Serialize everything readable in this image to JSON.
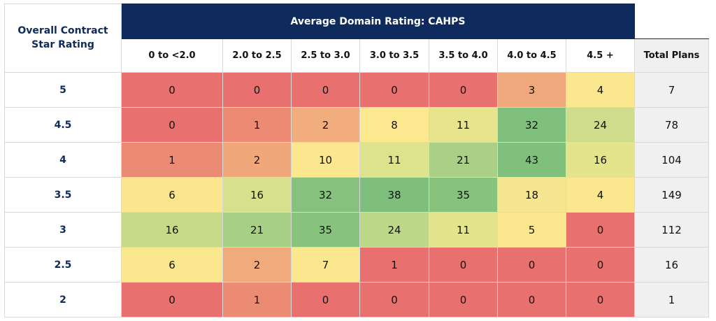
{
  "table": {
    "corner_header": "Overall Contract Star Rating",
    "group_header": "Average Domain Rating: CAHPS",
    "columns": [
      "0 to <2.0",
      "2.0 to 2.5",
      "2.5 to 3.0",
      "3.0 to 3.5",
      "3.5 to 4.0",
      "4.0 to 4.5",
      "4.5 +"
    ],
    "total_header": "Total Plans",
    "rows": [
      {
        "label": "5",
        "values": [
          0,
          0,
          0,
          0,
          0,
          3,
          4
        ],
        "total": 7,
        "colors": [
          "#e8706e",
          "#e8706e",
          "#e8706e",
          "#e8706e",
          "#e8706e",
          "#efa97c",
          "#fbe78e"
        ]
      },
      {
        "label": "4.5",
        "values": [
          0,
          1,
          2,
          8,
          11,
          32,
          24
        ],
        "total": 78,
        "colors": [
          "#e8706e",
          "#ec8a74",
          "#f1ad7e",
          "#fce98f",
          "#e6e48d",
          "#80c07d",
          "#cfdc8b"
        ]
      },
      {
        "label": "4",
        "values": [
          1,
          2,
          10,
          11,
          21,
          43,
          16
        ],
        "total": 104,
        "colors": [
          "#ec8b74",
          "#f0a87b",
          "#fbe78e",
          "#dde28c",
          "#a9d086",
          "#80c07d",
          "#e4e48d"
        ]
      },
      {
        "label": "3.5",
        "values": [
          6,
          16,
          32,
          38,
          35,
          18,
          4
        ],
        "total": 149,
        "colors": [
          "#fbe68e",
          "#d7e08b",
          "#86c27e",
          "#7fbf7d",
          "#88c37e",
          "#f5e58e",
          "#fbe78e"
        ]
      },
      {
        "label": "3",
        "values": [
          16,
          21,
          35,
          24,
          11,
          5,
          0
        ],
        "total": 112,
        "colors": [
          "#c7da89",
          "#a7cf86",
          "#88c37e",
          "#bdd789",
          "#e4e48d",
          "#fbe78e",
          "#e8706e"
        ]
      },
      {
        "label": "2.5",
        "values": [
          6,
          2,
          7,
          1,
          0,
          0,
          0
        ],
        "total": 16,
        "colors": [
          "#fbe78e",
          "#f0ab7c",
          "#fbe78e",
          "#e8706e",
          "#e8706e",
          "#e8706e",
          "#e8706e"
        ]
      },
      {
        "label": "2",
        "values": [
          0,
          1,
          0,
          0,
          0,
          0,
          0
        ],
        "total": 1,
        "colors": [
          "#e8706e",
          "#ec8b74",
          "#e8706e",
          "#e8706e",
          "#e8706e",
          "#e8706e",
          "#e8706e"
        ]
      }
    ]
  }
}
